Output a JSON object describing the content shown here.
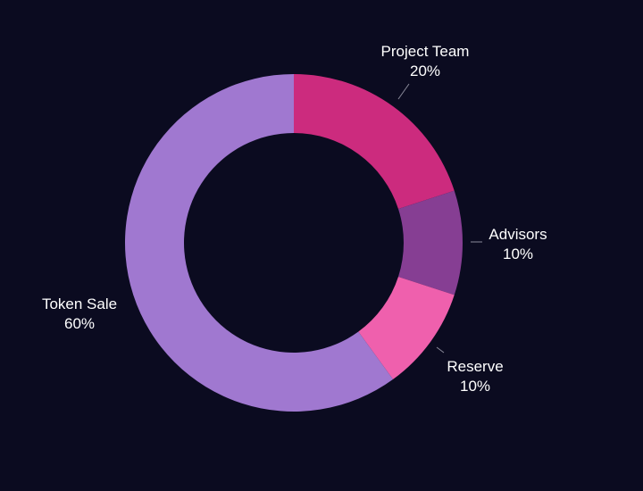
{
  "chart_data": {
    "type": "pie",
    "variant": "donut",
    "title": "",
    "background_color": "#0b0b20",
    "legend": "none",
    "slices": [
      {
        "label": "Project Team",
        "value": 20,
        "display": "20%",
        "color": "#cc2b7e"
      },
      {
        "label": "Advisors",
        "value": 10,
        "display": "10%",
        "color": "#863e93"
      },
      {
        "label": "Reserve",
        "value": 10,
        "display": "10%",
        "color": "#ef60ad"
      },
      {
        "label": "Token Sale",
        "value": 60,
        "display": "60%",
        "color": "#a078d0"
      }
    ]
  }
}
